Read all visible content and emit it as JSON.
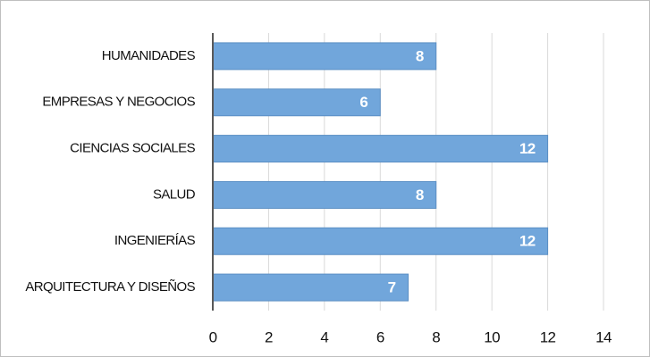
{
  "chart_data": {
    "type": "bar",
    "orientation": "horizontal",
    "categories": [
      "HUMANIDADES",
      "EMPRESAS Y NEGOCIOS",
      "CIENCIAS SOCIALES",
      "SALUD",
      "INGENIERÍAS",
      "ARQUITECTURA Y DISEÑOS"
    ],
    "values": [
      8,
      6,
      12,
      8,
      12,
      7
    ],
    "color": "#71a6db",
    "xlim": [
      0,
      14
    ],
    "xticks": [
      0,
      2,
      4,
      6,
      8,
      10,
      12,
      14
    ],
    "grid": true
  }
}
